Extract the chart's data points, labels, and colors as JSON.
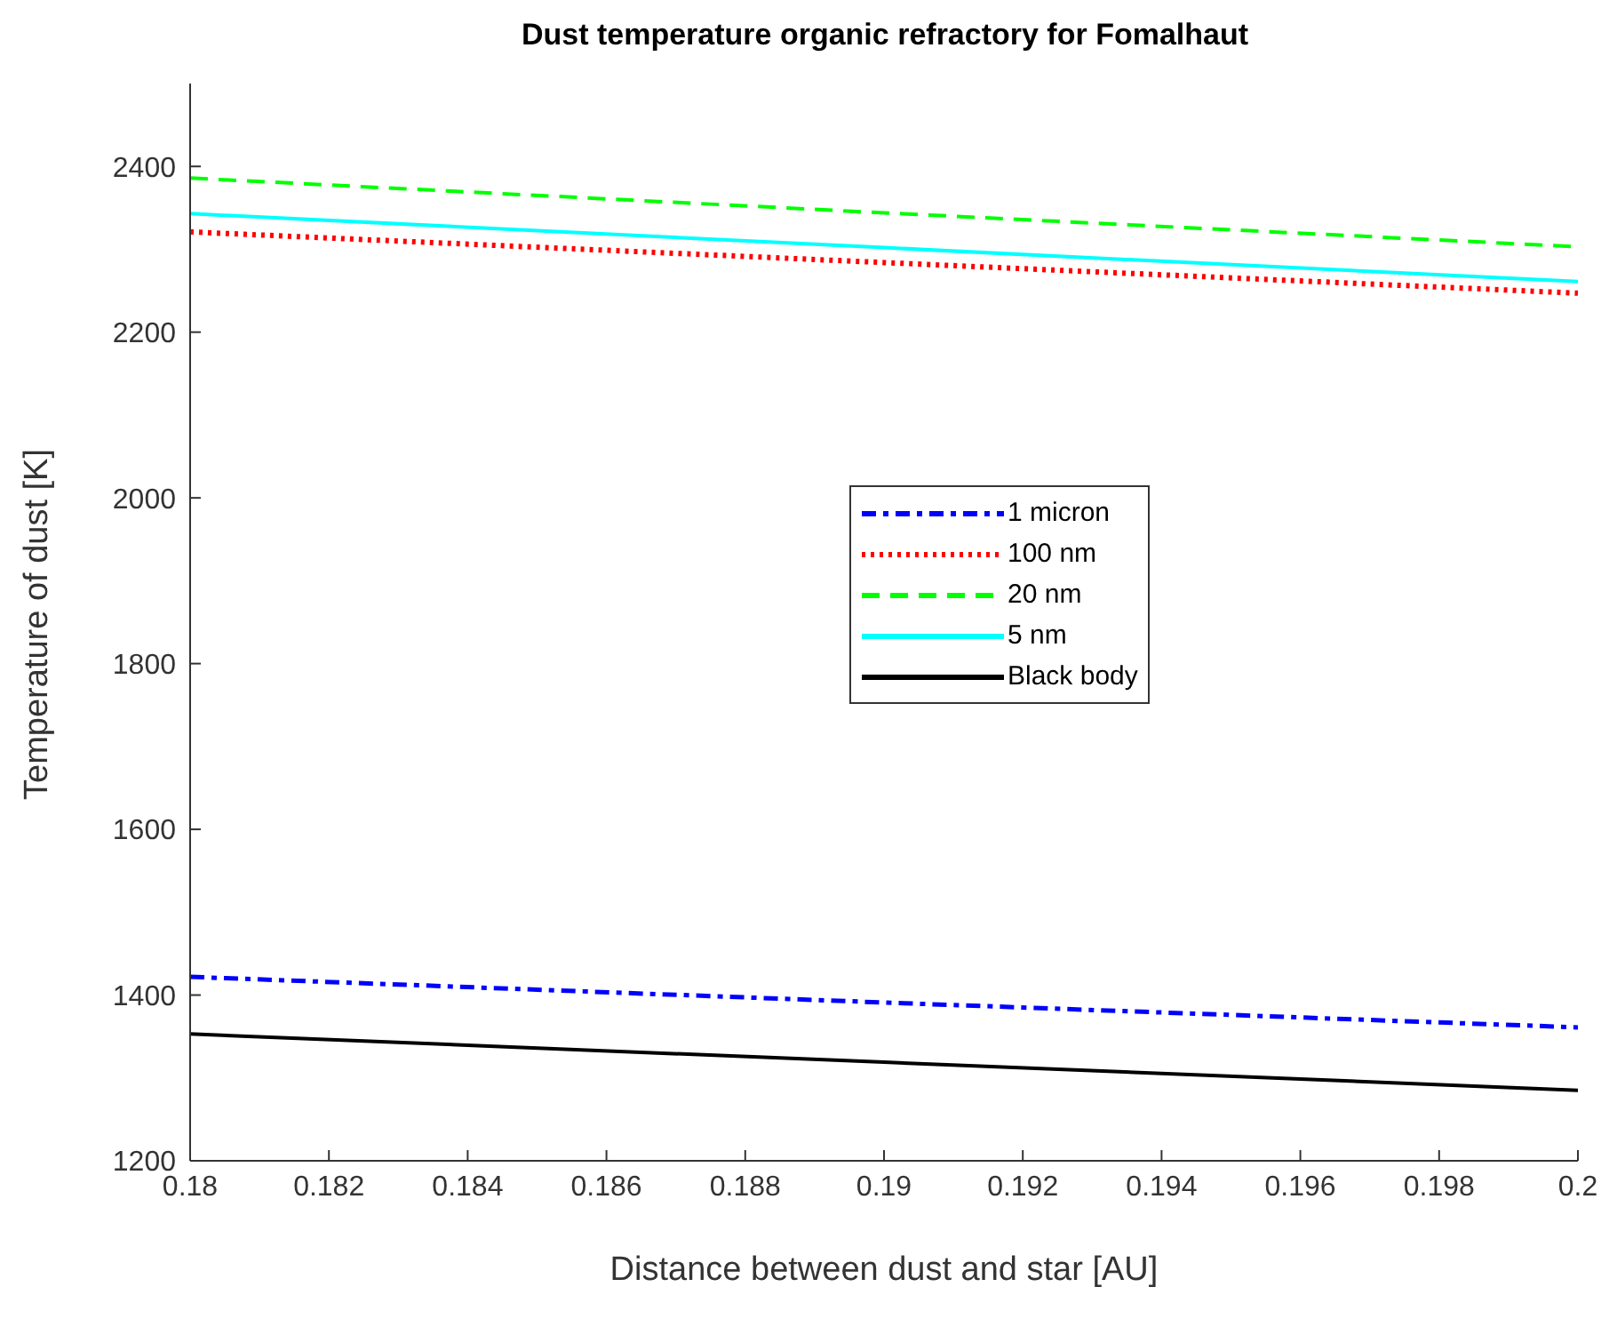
{
  "chart_data": {
    "type": "line",
    "title": "Dust temperature organic refractory for Fomalhaut",
    "xlabel": "Distance between dust and star [AU]",
    "ylabel": "Temperature of dust [K]",
    "x": [
      0.18,
      0.19,
      0.2
    ],
    "series": [
      {
        "name": "1 micron",
        "color": "#0000ff",
        "line_style": "dashdot",
        "values": [
          1422,
          1391,
          1361
        ]
      },
      {
        "name": "100 nm",
        "color": "#ff0000",
        "line_style": "dotted",
        "values": [
          2321,
          2284,
          2247
        ]
      },
      {
        "name": "20 nm",
        "color": "#00ff00",
        "line_style": "dashed",
        "values": [
          2386,
          2344,
          2303
        ]
      },
      {
        "name": "5 nm",
        "color": "#00ffff",
        "line_style": "solid",
        "values": [
          2343,
          2302,
          2261
        ]
      },
      {
        "name": "Black body",
        "color": "#000000",
        "line_style": "solid",
        "values": [
          1353,
          1319,
          1285
        ]
      }
    ],
    "xlim": [
      0.18,
      0.2
    ],
    "xticks": [
      0.18,
      0.182,
      0.184,
      0.186,
      0.188,
      0.19,
      0.192,
      0.194,
      0.196,
      0.198,
      0.2
    ],
    "ylim": [
      1200,
      2500
    ],
    "yticks": [
      1200,
      1400,
      1600,
      1800,
      2000,
      2200,
      2400
    ],
    "grid": false,
    "legend": "center",
    "marker": "none"
  }
}
